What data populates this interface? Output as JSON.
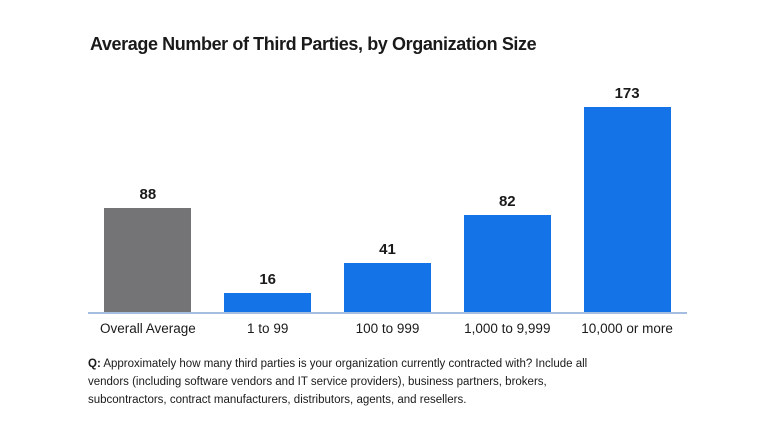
{
  "chart_data": {
    "type": "bar",
    "title": "Average Number of Third Parties, by Organization Size",
    "categories": [
      "Overall Average",
      "1 to 99",
      "100 to 999",
      "1,000 to 9,999",
      "10,000 or more"
    ],
    "values": [
      88,
      16,
      41,
      82,
      173
    ],
    "data_labels": [
      "88",
      "16",
      "41",
      "82",
      "173"
    ],
    "colors": [
      "#747476",
      "#1473e6",
      "#1473e6",
      "#1473e6",
      "#1473e6"
    ],
    "xlabel": "",
    "ylabel": "",
    "ylim": [
      0,
      180
    ],
    "grid": false,
    "legend": "none",
    "axis_line_color": "#a4bee2"
  },
  "footnote": {
    "prefix": "Q:",
    "lines": [
      "Approximately how many third parties is your organization currently contracted with? Include all",
      "vendors (including software vendors and IT service providers), business partners, brokers,",
      "subcontractors, contract manufacturers, distributors, agents, and resellers."
    ]
  }
}
